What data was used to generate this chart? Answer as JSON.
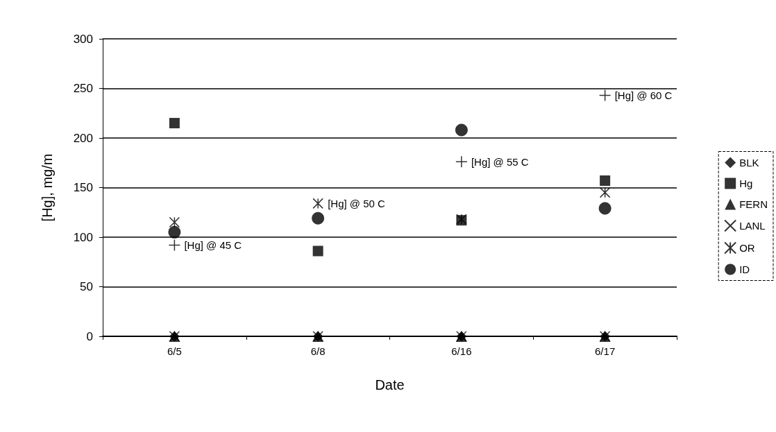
{
  "chart_data": {
    "type": "scatter",
    "xlabel": "Date",
    "ylabel": "[Hg], mg/m",
    "categories": [
      "6/5",
      "6/8",
      "6/16",
      "6/17"
    ],
    "series": [
      {
        "name": "BLK",
        "color": "#000000",
        "marker": "diamond",
        "values": [
          0,
          0,
          0,
          0
        ]
      },
      {
        "name": "Hg",
        "color": "#000000",
        "marker": "square",
        "values": [
          215,
          86,
          117,
          157
        ]
      },
      {
        "name": "FERN",
        "color": "#000000",
        "marker": "triangle",
        "values": [
          0,
          0,
          0,
          0
        ]
      },
      {
        "name": "LANL",
        "color": "#000000",
        "marker": "cross",
        "values": [
          0,
          0,
          0,
          0
        ]
      },
      {
        "name": "OR",
        "color": "#000000",
        "values": [
          115,
          134,
          118,
          145
        ]
      },
      {
        "name": "ID",
        "color": "#000000",
        "marker": "circle",
        "values": [
          105,
          119,
          208,
          129
        ]
      },
      {
        "color": "#000000",
        "marker": "plus",
        "values": [
          92,
          null,
          176,
          243
        ]
      }
    ],
    "annotations": [
      {
        "text": "[Hg] @ 45 C",
        "x": "6/5",
        "y": 92
      },
      {
        "text": "[Hg] @ 50 C",
        "x": "6/8",
        "y": 134
      },
      {
        "text": "[Hg] @ 55 C",
        "x": "6/16",
        "y": 176
      },
      {
        "text": "[Hg] @ 60 C",
        "x": "6/17",
        "y": 243
      }
    ],
    "ylim": [
      0,
      300
    ],
    "yticks": [
      0,
      50,
      100,
      150,
      200,
      250,
      300
    ],
    "grid": "y",
    "legend": "right"
  }
}
